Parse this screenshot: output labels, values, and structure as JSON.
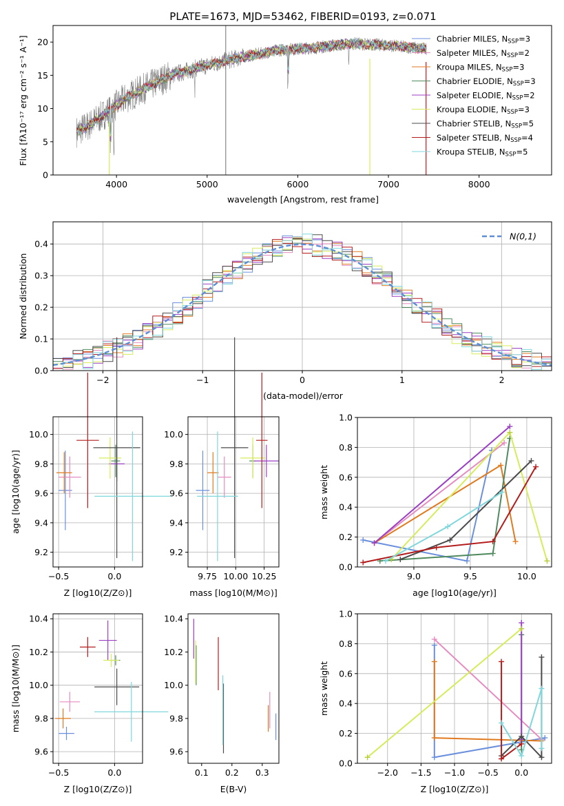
{
  "figure": {
    "title": "PLATE=1673, MJD=53462, FIBERID=0193, z=0.071"
  },
  "colors": [
    "#6a8fdc",
    "#e58cc0",
    "#e07a1f",
    "#4f8a5e",
    "#9b3fc3",
    "#d6ec5a",
    "#4a4a4a",
    "#b31b1b",
    "#7fd7dc"
  ],
  "chart_data": [
    {
      "id": "spectrum",
      "type": "line",
      "title": "PLATE=1673, MJD=53462, FIBERID=0193, z=0.071",
      "xlabel": "wavelength [Angstrom, rest frame]",
      "ylabel": "Flux [fλ10⁻¹⁷ erg cm⁻² s⁻¹ A⁻¹]",
      "xlim": [
        3300,
        8800
      ],
      "ylim": [
        0,
        22.5
      ],
      "xticks": [
        4000,
        5000,
        6000,
        7000,
        8000
      ],
      "yticks": [
        0,
        5,
        10,
        15,
        20
      ],
      "legend": "top-right",
      "continuum": {
        "x": [
          3560,
          3700,
          3900,
          4100,
          4300,
          4600,
          5000,
          5400,
          5800,
          6200,
          6600,
          7000,
          7400
        ],
        "y": [
          6.5,
          7.5,
          9.5,
          11.5,
          13,
          15,
          16.5,
          17.8,
          18.8,
          19.2,
          19.8,
          19.5,
          19
        ]
      },
      "series": [
        {
          "name": "Chabrier MILES, N<sub>SSP</sub>=3",
          "label_main": "Chabrier MILES, N",
          "label_sub": "SSP",
          "label_tail": "=3"
        },
        {
          "name": "Salpeter MILES, NSSP=2",
          "label_main": "Salpeter MILES, N",
          "label_sub": "SSP",
          "label_tail": "=2"
        },
        {
          "name": "Kroupa MILES, NSSP=3",
          "label_main": "Kroupa MILES, N",
          "label_sub": "SSP",
          "label_tail": "=3"
        },
        {
          "name": "Chabrier ELODIE, NSSP=3",
          "label_main": "Chabrier ELODIE, N",
          "label_sub": "SSP",
          "label_tail": "=3"
        },
        {
          "name": "Salpeter ELODIE, NSSP=2",
          "label_main": "Salpeter ELODIE, N",
          "label_sub": "SSP",
          "label_tail": "=2"
        },
        {
          "name": "Kroupa ELODIE, NSSP=3",
          "label_main": "Kroupa ELODIE, N",
          "label_sub": "SSP",
          "label_tail": "=3"
        },
        {
          "name": "Chabrier STELIB, NSSP=5",
          "label_main": "Chabrier STELIB, N",
          "label_sub": "SSP",
          "label_tail": "=5"
        },
        {
          "name": "Salpeter STELIB, NSSP=4",
          "label_main": "Salpeter STELIB, N",
          "label_sub": "SSP",
          "label_tail": "=4"
        },
        {
          "name": "Kroupa STELIB, NSSP=5",
          "label_main": "Kroupa STELIB, N",
          "label_sub": "SSP",
          "label_tail": "=5"
        }
      ],
      "spikes": [
        {
          "x": 5205,
          "y": [
            0,
            22.5
          ],
          "color": "#888888"
        },
        {
          "x": 6795,
          "y": [
            0,
            17.5
          ],
          "color": "#d6ec5a"
        },
        {
          "x": 7415,
          "y": [
            0,
            17
          ],
          "color": "#b31b1b"
        },
        {
          "x": 3920,
          "y": [
            0,
            8
          ],
          "color": "#d6ec5a"
        }
      ]
    },
    {
      "id": "residuals",
      "type": "histogram",
      "xlabel": "(data-model)/error",
      "ylabel": "Normed distribution",
      "xlim": [
        -2.5,
        2.5
      ],
      "ylim": [
        0,
        0.47
      ],
      "xticks": [
        -2,
        -1,
        0,
        1,
        2
      ],
      "yticks": [
        0.0,
        0.1,
        0.2,
        0.3,
        0.4
      ],
      "grid": true,
      "bin_width": 0.1,
      "legend_entry": "N(0,1)",
      "legend": "top-right"
    },
    {
      "id": "age_vs_Z",
      "type": "errorbar",
      "xlabel": "Z [log10(Z/Z⊙)]",
      "ylabel": "age  [log10(age/yr)]",
      "xlim": [
        -0.55,
        0.25
      ],
      "ylim": [
        9.1,
        10.12
      ],
      "xticks": [
        -0.5,
        0.0
      ],
      "yticks": [
        9.2,
        9.4,
        9.6,
        9.8,
        10.0
      ],
      "grid": true,
      "points": [
        {
          "x": -0.44,
          "xerr": 0.06,
          "y": 9.62,
          "yerr": 0.27
        },
        {
          "x": -0.4,
          "xerr": 0.1,
          "y": 9.71,
          "yerr": 0.14
        },
        {
          "x": -0.45,
          "xerr": 0.07,
          "y": 9.74,
          "yerr": 0.14
        },
        {
          "x": 0.01,
          "xerr": 0.04,
          "y": 9.82,
          "yerr": 0.11
        },
        {
          "x": 0.02,
          "xerr": 0.07,
          "y": 9.8,
          "yerr": 0.12
        },
        {
          "x": -0.04,
          "xerr": 0.1,
          "y": 9.84,
          "yerr": 0.14
        },
        {
          "x": 0.02,
          "xerr": 0.21,
          "y": 9.91,
          "yerr": 0.75
        },
        {
          "x": -0.24,
          "xerr": 0.1,
          "y": 9.96,
          "yerr": 0.46
        },
        {
          "x": 0.16,
          "xerr": 0.34,
          "y": 9.58,
          "yerr": 0.44
        }
      ]
    },
    {
      "id": "age_vs_mass",
      "type": "errorbar",
      "xlabel": "mass [log10(M/M⊙)]",
      "ylabel": "",
      "xlim": [
        9.58,
        10.38
      ],
      "ylim": [
        9.1,
        10.12
      ],
      "xticks": [
        9.75,
        10.0,
        10.25
      ],
      "yticks": [
        9.2,
        9.4,
        9.6,
        9.8,
        10.0
      ],
      "grid": true,
      "points": [
        {
          "x": 9.71,
          "xerr": 0.06,
          "y": 9.62,
          "yerr": 0.27
        },
        {
          "x": 9.9,
          "xerr": 0.06,
          "y": 9.71,
          "yerr": 0.14
        },
        {
          "x": 9.8,
          "xerr": 0.05,
          "y": 9.74,
          "yerr": 0.14
        },
        {
          "x": 10.15,
          "xerr": 0.03,
          "y": 9.82,
          "yerr": 0.11
        },
        {
          "x": 10.27,
          "xerr": 0.11,
          "y": 9.82,
          "yerr": 0.11
        },
        {
          "x": 10.15,
          "xerr": 0.11,
          "y": 9.84,
          "yerr": 0.14
        },
        {
          "x": 9.99,
          "xerr": 0.12,
          "y": 9.91,
          "yerr": 0.75
        },
        {
          "x": 10.23,
          "xerr": 0.05,
          "y": 9.96,
          "yerr": 0.46
        },
        {
          "x": 9.84,
          "xerr": 0.18,
          "y": 9.58,
          "yerr": 0.44
        }
      ]
    },
    {
      "id": "weight_vs_age",
      "type": "line",
      "xlabel": "age  [log10(age/yr)]",
      "ylabel": "mass weight",
      "xlim": [
        8.5,
        10.22
      ],
      "ylim": [
        0,
        1
      ],
      "xticks": [
        9.0,
        9.5,
        10.0
      ],
      "yticks": [
        0.0,
        0.2,
        0.4,
        0.6,
        0.8,
        1.0
      ],
      "grid": true,
      "series": [
        {
          "x": [
            8.55,
            9.47,
            9.69
          ],
          "y": [
            0.18,
            0.04,
            0.78
          ]
        },
        {
          "x": [
            8.65,
            9.8
          ],
          "y": [
            0.16,
            0.83
          ]
        },
        {
          "x": [
            8.65,
            9.77,
            9.9
          ],
          "y": [
            0.16,
            0.68,
            0.17
          ]
        },
        {
          "x": [
            8.7,
            9.7,
            9.85
          ],
          "y": [
            0.04,
            0.09,
            0.86
          ]
        },
        {
          "x": [
            8.65,
            9.85
          ],
          "y": [
            0.16,
            0.94
          ]
        },
        {
          "x": [
            8.8,
            9.85,
            10.18
          ],
          "y": [
            0.05,
            0.9,
            0.04
          ]
        },
        {
          "x": [
            8.88,
            9.32,
            10.04
          ],
          "y": [
            0.05,
            0.18,
            0.71
          ]
        },
        {
          "x": [
            8.55,
            9.2,
            9.7,
            10.08
          ],
          "y": [
            0.03,
            0.13,
            0.17,
            0.67
          ]
        },
        {
          "x": [
            8.75,
            9.3,
            9.78
          ],
          "y": [
            0.04,
            0.27,
            0.5
          ]
        }
      ]
    },
    {
      "id": "mass_vs_Z",
      "type": "errorbar",
      "xlabel": "Z [log10(Z/Z⊙)]",
      "ylabel": "mass [log10(M/M⊙)]",
      "xlim": [
        -0.55,
        0.25
      ],
      "ylim": [
        9.53,
        10.43
      ],
      "xticks": [
        -0.5,
        0.0
      ],
      "yticks": [
        9.6,
        9.8,
        10.0,
        10.2,
        10.4
      ],
      "grid": true,
      "points": [
        {
          "x": -0.43,
          "xerr": 0.07,
          "y": 9.71,
          "yerr": 0.04
        },
        {
          "x": -0.4,
          "xerr": 0.09,
          "y": 9.9,
          "yerr": 0.06
        },
        {
          "x": -0.46,
          "xerr": 0.07,
          "y": 9.8,
          "yerr": 0.06
        },
        {
          "x": 0.01,
          "xerr": 0.04,
          "y": 10.15,
          "yerr": 0.03
        },
        {
          "x": -0.06,
          "xerr": 0.08,
          "y": 10.27,
          "yerr": 0.12
        },
        {
          "x": -0.03,
          "xerr": 0.07,
          "y": 10.15,
          "yerr": 0.04
        },
        {
          "x": 0.02,
          "xerr": 0.2,
          "y": 9.99,
          "yerr": 0.11
        },
        {
          "x": -0.24,
          "xerr": 0.07,
          "y": 10.23,
          "yerr": 0.06
        },
        {
          "x": 0.15,
          "xerr": 0.33,
          "y": 9.84,
          "yerr": 0.18
        }
      ]
    },
    {
      "id": "mass_vs_ebv",
      "type": "errorbar",
      "xlabel": "E(B-V)",
      "ylabel": "",
      "xlim": [
        0.055,
        0.355
      ],
      "ylim": [
        9.53,
        10.43
      ],
      "xticks": [
        0.1,
        0.2,
        0.3
      ],
      "yticks": [
        9.6,
        9.8,
        10.0,
        10.2,
        10.4
      ],
      "grid": false,
      "points": [
        {
          "x": 0.345,
          "xerr": 0.001,
          "y": 9.75,
          "yerr": 0.08
        },
        {
          "x": 0.325,
          "xerr": 0.001,
          "y": 9.85,
          "yerr": 0.11
        },
        {
          "x": 0.32,
          "xerr": 0.001,
          "y": 9.8,
          "yerr": 0.08
        },
        {
          "x": 0.082,
          "xerr": 0.001,
          "y": 10.12,
          "yerr": 0.12
        },
        {
          "x": 0.074,
          "xerr": 0.001,
          "y": 10.28,
          "yerr": 0.12
        },
        {
          "x": 0.08,
          "xerr": 0.001,
          "y": 10.14,
          "yerr": 0.13
        },
        {
          "x": 0.172,
          "xerr": 0.001,
          "y": 9.8,
          "yerr": 0.21
        },
        {
          "x": 0.155,
          "xerr": 0.001,
          "y": 10.13,
          "yerr": 0.16
        },
        {
          "x": 0.17,
          "xerr": 0.001,
          "y": 9.85,
          "yerr": 0.21
        }
      ]
    },
    {
      "id": "weight_vs_Z",
      "type": "line",
      "xlabel": "Z [log10(Z/Z⊙)]",
      "ylabel": "mass weight",
      "xlim": [
        -2.45,
        0.45
      ],
      "ylim": [
        0,
        1
      ],
      "xticks": [
        -2.0,
        -1.5,
        -1.0,
        -0.5,
        0.0
      ],
      "yticks": [
        0.0,
        0.2,
        0.4,
        0.6,
        0.8,
        1.0
      ],
      "grid": true,
      "series": [
        {
          "x": [
            -1.3,
            -1.3,
            0.35
          ],
          "y": [
            0.79,
            0.04,
            0.17
          ]
        },
        {
          "x": [
            -1.3,
            0.3
          ],
          "y": [
            0.83,
            0.16
          ]
        },
        {
          "x": [
            -1.3,
            -1.3,
            0.3
          ],
          "y": [
            0.68,
            0.17,
            0.15
          ]
        },
        {
          "x": [
            0.0,
            0.0
          ],
          "y": [
            0.09,
            0.86
          ]
        },
        {
          "x": [
            0.0,
            0.0
          ],
          "y": [
            0.16,
            0.94
          ]
        },
        {
          "x": [
            -2.3,
            0.0
          ],
          "y": [
            0.04,
            0.9
          ]
        },
        {
          "x": [
            -0.3,
            0.0,
            0.3,
            0.3
          ],
          "y": [
            0.05,
            0.18,
            0.04,
            0.71
          ]
        },
        {
          "x": [
            -0.3,
            -0.3,
            0.0
          ],
          "y": [
            0.68,
            0.03,
            0.13
          ]
        },
        {
          "x": [
            -0.3,
            0.0,
            0.3,
            0.3
          ],
          "y": [
            0.27,
            0.05,
            0.5,
            0.1
          ]
        }
      ]
    }
  ]
}
